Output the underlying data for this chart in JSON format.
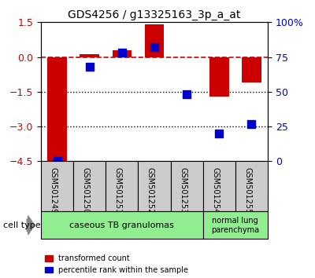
{
  "title": "GDS4256 / g13325163_3p_a_at",
  "samples": [
    "GSM501249",
    "GSM501250",
    "GSM501251",
    "GSM501252",
    "GSM501253",
    "GSM501254",
    "GSM501255"
  ],
  "transformed_count": [
    -4.5,
    0.12,
    0.3,
    1.4,
    -0.02,
    -1.7,
    -1.1
  ],
  "percentile_rank": [
    0.0,
    68.0,
    78.0,
    82.0,
    48.0,
    20.0,
    27.0
  ],
  "red_color": "#CC0000",
  "blue_color": "#0000CC",
  "ylim_left": [
    -4.5,
    1.5
  ],
  "ylim_right": [
    0,
    100
  ],
  "yticks_left": [
    1.5,
    0,
    -1.5,
    -3,
    -4.5
  ],
  "yticks_right": [
    100,
    75,
    50,
    25,
    0
  ],
  "hline_y": 0,
  "dotted_hlines": [
    -1.5,
    -3.0
  ],
  "bar_width": 0.6,
  "marker_size": 48,
  "bg_plot": "#ffffff",
  "gray_box": "#cccccc",
  "green_box": "#90EE90",
  "legend_labels": [
    "transformed count",
    "percentile rank within the sample"
  ]
}
